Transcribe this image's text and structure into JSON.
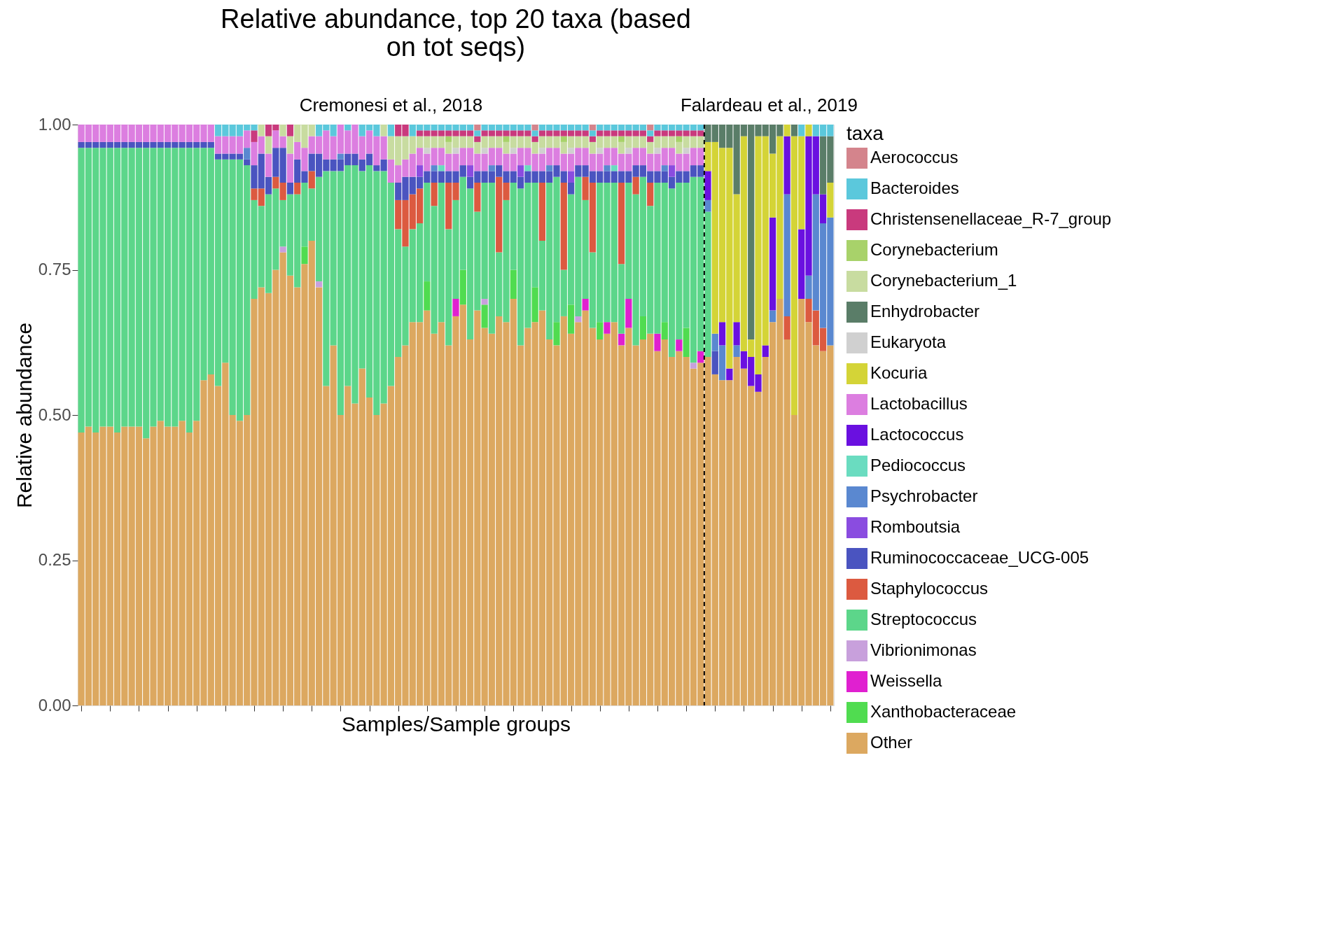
{
  "chart_data": {
    "type": "bar",
    "stacked": true,
    "title": "Relative abundance, top 20 taxa (based on tot seqs)",
    "xlabel": "Samples/Sample groups",
    "ylabel": "Relative abundance",
    "legend_title": "taxa",
    "legend": "right",
    "grid": false,
    "tick_labels": "y",
    "annotations": [
      "Cremonesi et al., 2018",
      "Falardeau et al., 2019"
    ],
    "ylim": [
      0,
      1
    ],
    "yticks": [
      {
        "value": 0,
        "label": "0.00"
      },
      {
        "value": 0.25,
        "label": "0.25"
      },
      {
        "value": 0.5,
        "label": "0.50"
      },
      {
        "value": 0.75,
        "label": "0.75"
      },
      {
        "value": 1,
        "label": "1.00"
      }
    ],
    "categories": [
      null,
      null,
      null,
      null,
      null,
      null,
      null,
      null,
      null,
      null,
      null,
      null,
      null,
      null,
      null,
      null,
      null,
      null,
      null,
      null,
      null,
      null,
      null,
      null,
      null,
      null,
      null,
      null,
      null,
      null,
      null,
      null,
      null,
      null,
      null,
      null,
      null,
      null,
      null,
      null,
      null,
      null,
      null,
      null,
      null,
      null,
      null,
      null,
      null,
      null,
      null,
      null,
      null,
      null,
      null,
      null,
      null,
      null,
      null,
      null,
      null,
      null,
      null,
      null,
      null,
      null,
      null,
      null,
      null,
      null,
      null,
      null,
      null,
      null,
      null,
      null,
      null,
      null,
      null,
      null,
      null,
      null,
      null,
      null,
      null,
      null,
      null,
      null,
      null,
      null,
      null,
      null,
      null,
      null,
      null,
      null,
      null,
      null,
      null,
      null,
      null,
      null,
      null,
      null,
      null
    ],
    "series": [
      {
        "name": "Other",
        "color": "#dca860",
        "values": [
          0.47,
          0.48,
          0.47,
          0.48,
          0.48,
          0.47,
          0.48,
          0.48,
          0.48,
          0.46,
          0.48,
          0.49,
          0.48,
          0.48,
          0.49,
          0.47,
          0.49,
          0.56,
          0.57,
          0.55,
          0.59,
          0.5,
          0.49,
          0.5,
          0.7,
          0.72,
          0.71,
          0.75,
          0.78,
          0.74,
          0.72,
          0.76,
          0.8,
          0.72,
          0.55,
          0.62,
          0.5,
          0.55,
          0.52,
          0.58,
          0.53,
          0.5,
          0.52,
          0.55,
          0.6,
          0.62,
          0.66,
          0.66,
          0.68,
          0.64,
          0.66,
          0.62,
          0.67,
          0.69,
          0.63,
          0.68,
          0.65,
          0.64,
          0.67,
          0.66,
          0.7,
          0.62,
          0.65,
          0.66,
          0.68,
          0.63,
          0.62,
          0.67,
          0.64,
          0.66,
          0.68,
          0.65,
          0.63,
          0.64,
          0.66,
          0.62,
          0.65,
          0.62,
          0.63,
          0.64,
          0.61,
          0.63,
          0.6,
          0.61,
          0.6,
          0.58,
          0.59,
          0.6,
          0.57,
          0.56,
          0.56,
          0.6,
          0.58,
          0.55,
          0.54,
          0.6,
          0.66,
          0.7,
          0.63,
          0.5,
          0.7,
          0.66,
          0.62,
          0.61,
          0.62
        ]
      },
      {
        "name": "Xanthobacteraceae",
        "color": "#50dc50",
        "values": [
          0,
          0,
          0,
          0,
          0,
          0,
          0,
          0,
          0,
          0,
          0,
          0,
          0,
          0,
          0,
          0,
          0,
          0,
          0,
          0,
          0,
          0,
          0,
          0,
          0,
          0,
          0,
          0,
          0,
          0,
          0,
          0.03,
          0,
          0,
          0,
          0,
          0,
          0,
          0,
          0,
          0,
          0,
          0,
          0,
          0,
          0,
          0,
          0,
          0.05,
          0,
          0,
          0,
          0,
          0.06,
          0,
          0,
          0.04,
          0,
          0,
          0,
          0.05,
          0,
          0,
          0.06,
          0,
          0,
          0.04,
          0,
          0.05,
          0,
          0,
          0,
          0.03,
          0,
          0,
          0,
          0,
          0,
          0.04,
          0,
          0,
          0.03,
          0,
          0,
          0.05,
          0,
          0,
          0,
          0,
          0,
          0,
          0,
          0,
          0,
          0,
          0,
          0,
          0,
          0,
          0,
          0,
          0,
          0,
          0,
          0
        ]
      },
      {
        "name": "Weissella",
        "color": "#e020d0",
        "values": [
          0,
          0,
          0,
          0,
          0,
          0,
          0,
          0,
          0,
          0,
          0,
          0,
          0,
          0,
          0,
          0,
          0,
          0,
          0,
          0,
          0,
          0,
          0,
          0,
          0,
          0,
          0,
          0,
          0,
          0,
          0,
          0,
          0,
          0,
          0,
          0,
          0,
          0,
          0,
          0,
          0,
          0,
          0,
          0,
          0,
          0,
          0,
          0,
          0,
          0,
          0,
          0,
          0.03,
          0,
          0,
          0,
          0,
          0,
          0,
          0,
          0,
          0,
          0,
          0,
          0,
          0,
          0,
          0,
          0,
          0,
          0.02,
          0,
          0,
          0.02,
          0,
          0.02,
          0.05,
          0,
          0,
          0,
          0.03,
          0,
          0,
          0.02,
          0,
          0,
          0.02,
          0,
          0,
          0,
          0,
          0,
          0,
          0,
          0,
          0,
          0,
          0,
          0,
          0,
          0,
          0,
          0,
          0,
          0
        ]
      },
      {
        "name": "Vibrionimonas",
        "color": "#c8a0dc",
        "values": [
          0,
          0,
          0,
          0,
          0,
          0,
          0,
          0,
          0,
          0,
          0,
          0,
          0,
          0,
          0,
          0,
          0,
          0,
          0,
          0,
          0,
          0,
          0,
          0,
          0,
          0,
          0,
          0,
          0.01,
          0,
          0,
          0,
          0,
          0.01,
          0,
          0,
          0,
          0,
          0,
          0,
          0,
          0,
          0,
          0,
          0,
          0,
          0,
          0,
          0,
          0,
          0,
          0,
          0,
          0,
          0,
          0,
          0.01,
          0,
          0,
          0,
          0,
          0,
          0,
          0,
          0,
          0,
          0,
          0,
          0,
          0.01,
          0,
          0,
          0,
          0,
          0,
          0,
          0,
          0,
          0,
          0,
          0,
          0,
          0,
          0,
          0,
          0.01,
          0,
          0,
          0,
          0,
          0,
          0,
          0,
          0,
          0,
          0,
          0,
          0,
          0,
          0,
          0,
          0,
          0,
          0,
          0
        ]
      },
      {
        "name": "Streptococcus",
        "color": "#5cd68a",
        "values": [
          0.49,
          0.48,
          0.49,
          0.48,
          0.48,
          0.49,
          0.48,
          0.48,
          0.48,
          0.5,
          0.48,
          0.47,
          0.48,
          0.48,
          0.47,
          0.49,
          0.47,
          0.4,
          0.39,
          0.39,
          0.35,
          0.44,
          0.45,
          0.43,
          0.17,
          0.14,
          0.17,
          0.14,
          0.08,
          0.14,
          0.16,
          0.11,
          0.09,
          0.18,
          0.37,
          0.3,
          0.42,
          0.38,
          0.41,
          0.34,
          0.4,
          0.42,
          0.4,
          0.35,
          0.22,
          0.17,
          0.16,
          0.17,
          0.17,
          0.22,
          0.24,
          0.2,
          0.17,
          0.16,
          0.26,
          0.17,
          0.2,
          0.26,
          0.11,
          0.21,
          0.15,
          0.27,
          0.25,
          0.18,
          0.12,
          0.27,
          0.25,
          0.08,
          0.19,
          0.24,
          0.17,
          0.13,
          0.24,
          0.24,
          0.24,
          0.12,
          0.2,
          0.26,
          0.24,
          0.22,
          0.26,
          0.24,
          0.29,
          0.27,
          0.25,
          0.32,
          0.3,
          0.25,
          0,
          0,
          0,
          0,
          0,
          0,
          0,
          0,
          0,
          0,
          0,
          0,
          0,
          0,
          0,
          0,
          0
        ]
      },
      {
        "name": "Staphylococcus",
        "color": "#dc5a40",
        "values": [
          0,
          0,
          0,
          0,
          0,
          0,
          0,
          0,
          0,
          0,
          0,
          0,
          0,
          0,
          0,
          0,
          0,
          0,
          0,
          0,
          0,
          0,
          0,
          0,
          0.02,
          0.03,
          0,
          0.02,
          0.03,
          0,
          0.02,
          0,
          0.03,
          0,
          0,
          0,
          0,
          0,
          0,
          0,
          0,
          0,
          0,
          0,
          0.05,
          0.08,
          0.06,
          0.06,
          0,
          0.04,
          0,
          0.08,
          0.03,
          0,
          0,
          0.05,
          0,
          0,
          0.13,
          0.03,
          0,
          0,
          0,
          0,
          0.1,
          0,
          0,
          0.15,
          0,
          0,
          0.04,
          0.12,
          0,
          0,
          0,
          0.14,
          0,
          0.03,
          0,
          0.04,
          0,
          0,
          0,
          0,
          0,
          0,
          0,
          0,
          0,
          0,
          0,
          0,
          0,
          0,
          0,
          0,
          0,
          0,
          0.04,
          0,
          0,
          0.04,
          0.06,
          0.04,
          0
        ]
      },
      {
        "name": "Ruminococcaceae_UCG-005",
        "color": "#4a54c0",
        "values": [
          0.01,
          0.01,
          0.01,
          0.01,
          0.01,
          0.01,
          0.01,
          0.01,
          0.01,
          0.01,
          0.01,
          0.01,
          0.01,
          0.01,
          0.01,
          0.01,
          0.01,
          0.01,
          0.01,
          0.01,
          0.01,
          0.01,
          0.01,
          0.01,
          0.04,
          0.06,
          0.03,
          0.05,
          0.06,
          0.02,
          0.04,
          0.02,
          0.03,
          0.04,
          0.02,
          0.02,
          0.02,
          0.02,
          0.02,
          0.02,
          0.02,
          0.01,
          0.02,
          0,
          0.03,
          0.04,
          0.03,
          0.02,
          0.02,
          0.02,
          0.02,
          0.02,
          0.02,
          0.02,
          0.02,
          0.02,
          0.02,
          0.02,
          0.02,
          0.02,
          0.02,
          0.02,
          0.02,
          0.02,
          0.02,
          0.02,
          0.02,
          0.02,
          0.02,
          0.02,
          0.02,
          0.02,
          0.02,
          0.02,
          0.02,
          0.02,
          0.02,
          0.02,
          0.02,
          0.02,
          0.02,
          0.02,
          0.02,
          0.02,
          0.02,
          0.02,
          0.02,
          0,
          0.04,
          0,
          0,
          0,
          0,
          0,
          0,
          0,
          0,
          0,
          0,
          0,
          0,
          0,
          0,
          0,
          0
        ]
      },
      {
        "name": "Romboutsia",
        "color": "#8a4ce0",
        "values": [
          0,
          0,
          0,
          0,
          0,
          0,
          0,
          0,
          0,
          0,
          0,
          0,
          0,
          0,
          0,
          0,
          0,
          0,
          0,
          0,
          0,
          0,
          0,
          0,
          0,
          0,
          0,
          0,
          0,
          0,
          0,
          0,
          0,
          0,
          0,
          0,
          0,
          0,
          0,
          0,
          0,
          0,
          0,
          0,
          0,
          0,
          0,
          0.02,
          0,
          0,
          0,
          0,
          0,
          0,
          0.02,
          0,
          0,
          0,
          0,
          0,
          0,
          0.02,
          0,
          0,
          0,
          0,
          0,
          0,
          0.02,
          0,
          0,
          0,
          0,
          0,
          0,
          0,
          0,
          0,
          0,
          0,
          0,
          0,
          0.02,
          0,
          0,
          0,
          0,
          0,
          0,
          0,
          0,
          0,
          0,
          0,
          0,
          0,
          0,
          0,
          0,
          0,
          0,
          0,
          0,
          0,
          0
        ]
      },
      {
        "name": "Psychrobacter",
        "color": "#5a88d0",
        "values": [
          0,
          0,
          0,
          0,
          0,
          0,
          0,
          0,
          0,
          0,
          0,
          0,
          0,
          0,
          0,
          0,
          0,
          0,
          0,
          0,
          0,
          0,
          0,
          0.02,
          0,
          0,
          0,
          0,
          0,
          0,
          0,
          0,
          0,
          0,
          0,
          0,
          0.01,
          0,
          0,
          0,
          0,
          0,
          0,
          0,
          0,
          0,
          0,
          0,
          0,
          0.01,
          0,
          0,
          0,
          0,
          0,
          0,
          0,
          0.01,
          0,
          0,
          0,
          0,
          0,
          0,
          0,
          0.01,
          0,
          0,
          0,
          0,
          0,
          0,
          0,
          0.01,
          0,
          0,
          0,
          0,
          0,
          0,
          0,
          0.01,
          0,
          0,
          0,
          0,
          0,
          0.02,
          0.03,
          0.06,
          0,
          0.02,
          0,
          0,
          0,
          0,
          0.02,
          0,
          0.21,
          0,
          0,
          0.04,
          0.2,
          0.18,
          0.22
        ]
      },
      {
        "name": "Pediococcus",
        "color": "#6adcc0",
        "values": [
          0,
          0,
          0,
          0,
          0,
          0,
          0,
          0,
          0,
          0,
          0,
          0,
          0,
          0,
          0,
          0,
          0,
          0,
          0,
          0,
          0,
          0,
          0,
          0,
          0,
          0,
          0,
          0,
          0,
          0,
          0,
          0,
          0,
          0,
          0,
          0,
          0,
          0,
          0,
          0,
          0,
          0,
          0,
          0,
          0,
          0,
          0,
          0,
          0,
          0,
          0.01,
          0,
          0,
          0,
          0,
          0,
          0,
          0,
          0,
          0,
          0,
          0,
          0.01,
          0,
          0,
          0,
          0,
          0,
          0,
          0,
          0,
          0,
          0,
          0,
          0.01,
          0,
          0,
          0,
          0,
          0,
          0,
          0,
          0,
          0,
          0,
          0,
          0,
          0,
          0,
          0,
          0,
          0,
          0,
          0,
          0,
          0,
          0,
          0,
          0,
          0,
          0,
          0,
          0,
          0,
          0
        ]
      },
      {
        "name": "Lactococcus",
        "color": "#6a10e0",
        "values": [
          0,
          0,
          0,
          0,
          0,
          0,
          0,
          0,
          0,
          0,
          0,
          0,
          0,
          0,
          0,
          0,
          0,
          0,
          0,
          0,
          0,
          0,
          0,
          0,
          0,
          0,
          0,
          0,
          0,
          0,
          0,
          0,
          0,
          0,
          0,
          0,
          0,
          0,
          0,
          0,
          0,
          0,
          0,
          0,
          0,
          0,
          0,
          0,
          0,
          0,
          0,
          0,
          0,
          0,
          0,
          0,
          0,
          0,
          0,
          0,
          0,
          0,
          0,
          0,
          0,
          0,
          0,
          0,
          0,
          0,
          0,
          0,
          0,
          0,
          0,
          0,
          0,
          0,
          0,
          0,
          0,
          0,
          0,
          0,
          0,
          0,
          0,
          0.05,
          0,
          0.04,
          0.02,
          0.04,
          0.03,
          0.05,
          0.03,
          0.02,
          0.16,
          0,
          0.1,
          0,
          0.12,
          0.24,
          0.1,
          0.05,
          0
        ]
      },
      {
        "name": "Lactobacillus",
        "color": "#dc7ee0",
        "values": [
          0.03,
          0.03,
          0.03,
          0.03,
          0.03,
          0.03,
          0.03,
          0.03,
          0.03,
          0.03,
          0.03,
          0.03,
          0.03,
          0.03,
          0.03,
          0.03,
          0.03,
          0.03,
          0.03,
          0.03,
          0.03,
          0.03,
          0.03,
          0.03,
          0.04,
          0.03,
          0.04,
          0.03,
          0.02,
          0.05,
          0.03,
          0.04,
          0.03,
          0.03,
          0.05,
          0.04,
          0.05,
          0.04,
          0.05,
          0.04,
          0.04,
          0.05,
          0.04,
          0.04,
          0.03,
          0.03,
          0.04,
          0.03,
          0.03,
          0.03,
          0.03,
          0.03,
          0.03,
          0.03,
          0.03,
          0.03,
          0.03,
          0.03,
          0.03,
          0.03,
          0.03,
          0.03,
          0.03,
          0.03,
          0.03,
          0.03,
          0.03,
          0.03,
          0.03,
          0.03,
          0.03,
          0.03,
          0.03,
          0.03,
          0.03,
          0.03,
          0.03,
          0.03,
          0.03,
          0.03,
          0.03,
          0.03,
          0.03,
          0.03,
          0.03,
          0.03,
          0.03,
          0,
          0,
          0,
          0,
          0,
          0,
          0,
          0,
          0,
          0,
          0,
          0,
          0,
          0,
          0,
          0,
          0,
          0
        ]
      },
      {
        "name": "Kocuria",
        "color": "#d4d437",
        "values": [
          0,
          0,
          0,
          0,
          0,
          0,
          0,
          0,
          0,
          0,
          0,
          0,
          0,
          0,
          0,
          0,
          0,
          0,
          0,
          0,
          0,
          0,
          0,
          0,
          0,
          0,
          0,
          0,
          0,
          0,
          0,
          0,
          0,
          0,
          0,
          0,
          0,
          0,
          0,
          0,
          0,
          0,
          0,
          0,
          0,
          0,
          0,
          0,
          0,
          0,
          0,
          0,
          0,
          0,
          0,
          0,
          0,
          0,
          0,
          0,
          0,
          0,
          0,
          0,
          0,
          0,
          0,
          0,
          0,
          0,
          0,
          0,
          0,
          0,
          0,
          0,
          0,
          0,
          0,
          0,
          0,
          0,
          0,
          0,
          0,
          0,
          0,
          0.05,
          0.33,
          0.3,
          0.38,
          0.22,
          0.37,
          0.03,
          0.41,
          0.36,
          0.11,
          0.28,
          0.02,
          0.48,
          0.16,
          0.02,
          0,
          0,
          0.06
        ]
      },
      {
        "name": "Eukaryota",
        "color": "#d0d0d0",
        "values": [
          0,
          0,
          0,
          0,
          0,
          0,
          0,
          0,
          0,
          0,
          0,
          0,
          0,
          0,
          0,
          0,
          0,
          0,
          0,
          0,
          0,
          0,
          0,
          0,
          0,
          0,
          0,
          0,
          0,
          0,
          0,
          0,
          0,
          0,
          0,
          0,
          0,
          0,
          0,
          0,
          0,
          0,
          0,
          0,
          0,
          0,
          0,
          0,
          0.01,
          0,
          0,
          0,
          0.01,
          0,
          0,
          0,
          0.01,
          0,
          0,
          0,
          0.01,
          0,
          0,
          0,
          0.01,
          0,
          0,
          0,
          0.01,
          0,
          0,
          0,
          0.01,
          0,
          0,
          0,
          0.01,
          0,
          0,
          0,
          0.01,
          0,
          0,
          0,
          0.01,
          0,
          0,
          0,
          0,
          0,
          0,
          0,
          0,
          0,
          0,
          0,
          0,
          0,
          0,
          0,
          0,
          0,
          0,
          0,
          0
        ]
      },
      {
        "name": "Enhydrobacter",
        "color": "#5a7d68",
        "values": [
          0,
          0,
          0,
          0,
          0,
          0,
          0,
          0,
          0,
          0,
          0,
          0,
          0,
          0,
          0,
          0,
          0,
          0,
          0,
          0,
          0,
          0,
          0,
          0,
          0,
          0,
          0,
          0,
          0,
          0,
          0,
          0,
          0,
          0,
          0,
          0,
          0,
          0,
          0,
          0,
          0,
          0,
          0,
          0,
          0,
          0,
          0,
          0,
          0,
          0,
          0,
          0,
          0,
          0,
          0,
          0,
          0,
          0,
          0,
          0,
          0,
          0,
          0,
          0,
          0,
          0,
          0,
          0,
          0,
          0,
          0,
          0,
          0,
          0,
          0,
          0,
          0,
          0,
          0,
          0,
          0,
          0,
          0,
          0,
          0,
          0,
          0,
          0.03,
          0.03,
          0.04,
          0.04,
          0.12,
          0.02,
          0.37,
          0.02,
          0.02,
          0.05,
          0.02,
          0,
          0.02,
          0,
          0,
          0,
          0.1,
          0.08
        ]
      },
      {
        "name": "Corynebacterium_1",
        "color": "#c8dca0",
        "values": [
          0,
          0,
          0,
          0,
          0,
          0,
          0,
          0,
          0,
          0,
          0,
          0,
          0,
          0,
          0,
          0,
          0,
          0,
          0,
          0,
          0,
          0,
          0,
          0,
          0,
          0.02,
          0.03,
          0,
          0.02,
          0.03,
          0.03,
          0.04,
          0.02,
          0,
          0,
          0,
          0,
          0,
          0,
          0,
          0,
          0,
          0.02,
          0.04,
          0.05,
          0.04,
          0.03,
          0.02,
          0.02,
          0.02,
          0.02,
          0.02,
          0.02,
          0.02,
          0.02,
          0.02,
          0.02,
          0.02,
          0.02,
          0.02,
          0.02,
          0.02,
          0.02,
          0.02,
          0.02,
          0.02,
          0.02,
          0.02,
          0.02,
          0.02,
          0.02,
          0.02,
          0.02,
          0.02,
          0.02,
          0.02,
          0.02,
          0.02,
          0.02,
          0.02,
          0.02,
          0.02,
          0.02,
          0.02,
          0.02,
          0.02,
          0.02,
          0,
          0,
          0,
          0,
          0,
          0,
          0,
          0,
          0,
          0,
          0,
          0,
          0,
          0,
          0,
          0,
          0,
          0
        ]
      },
      {
        "name": "Corynebacterium",
        "color": "#a8d26a",
        "values": [
          0,
          0,
          0,
          0,
          0,
          0,
          0,
          0,
          0,
          0,
          0,
          0,
          0,
          0,
          0,
          0,
          0,
          0,
          0,
          0,
          0,
          0,
          0,
          0,
          0,
          0,
          0,
          0,
          0,
          0,
          0,
          0,
          0,
          0,
          0,
          0,
          0,
          0,
          0,
          0,
          0,
          0,
          0,
          0,
          0,
          0,
          0,
          0,
          0,
          0,
          0,
          0.01,
          0,
          0,
          0,
          0,
          0,
          0,
          0,
          0.01,
          0,
          0,
          0,
          0,
          0,
          0,
          0,
          0.01,
          0,
          0,
          0,
          0,
          0,
          0,
          0,
          0.01,
          0,
          0,
          0,
          0,
          0,
          0,
          0,
          0.01,
          0,
          0,
          0,
          0,
          0,
          0,
          0,
          0,
          0,
          0,
          0,
          0,
          0,
          0,
          0,
          0,
          0,
          0,
          0,
          0,
          0
        ]
      },
      {
        "name": "Christensenellaceae_R-7_group",
        "color": "#c93a7d",
        "values": [
          0,
          0,
          0,
          0,
          0,
          0,
          0,
          0,
          0,
          0,
          0,
          0,
          0,
          0,
          0,
          0,
          0,
          0,
          0,
          0,
          0,
          0,
          0,
          0,
          0.02,
          0,
          0.02,
          0.01,
          0,
          0.02,
          0,
          0,
          0,
          0,
          0,
          0,
          0,
          0,
          0,
          0,
          0,
          0,
          0,
          0,
          0.02,
          0.02,
          0,
          0.01,
          0.01,
          0.01,
          0.01,
          0.01,
          0.01,
          0.01,
          0.01,
          0.01,
          0.01,
          0.01,
          0.01,
          0.01,
          0.01,
          0.01,
          0.01,
          0.01,
          0.01,
          0.01,
          0.01,
          0.01,
          0.01,
          0.01,
          0.01,
          0.01,
          0.01,
          0.01,
          0.01,
          0.01,
          0.01,
          0.01,
          0.01,
          0.01,
          0.01,
          0.01,
          0.01,
          0.01,
          0.01,
          0.01,
          0.01,
          0,
          0,
          0,
          0,
          0,
          0,
          0,
          0,
          0,
          0,
          0,
          0,
          0,
          0,
          0,
          0,
          0,
          0
        ]
      },
      {
        "name": "Bacteroides",
        "color": "#5bc8dc",
        "values": [
          0,
          0,
          0,
          0,
          0,
          0,
          0,
          0,
          0,
          0,
          0,
          0,
          0,
          0,
          0,
          0,
          0,
          0,
          0,
          0.02,
          0.02,
          0.02,
          0.02,
          0.01,
          0.01,
          0,
          0,
          0,
          0,
          0,
          0,
          0,
          0,
          0.02,
          0.01,
          0.02,
          0,
          0.01,
          0,
          0.02,
          0.01,
          0.02,
          0,
          0.02,
          0,
          0,
          0.02,
          0.01,
          0.01,
          0.01,
          0.01,
          0.01,
          0.01,
          0.01,
          0.01,
          0.01,
          0.01,
          0.01,
          0.01,
          0.01,
          0.01,
          0.01,
          0.01,
          0.01,
          0.01,
          0.01,
          0.01,
          0.01,
          0.01,
          0.01,
          0.01,
          0.01,
          0.01,
          0.01,
          0.01,
          0.01,
          0.01,
          0.01,
          0.01,
          0.01,
          0.01,
          0.01,
          0.01,
          0.01,
          0.01,
          0.01,
          0.01,
          0,
          0,
          0,
          0,
          0,
          0,
          0,
          0,
          0,
          0,
          0,
          0,
          0,
          0.02,
          0,
          0.02,
          0.02,
          0.02
        ]
      },
      {
        "name": "Aerococcus",
        "color": "#d4848c",
        "values": [
          0,
          0,
          0,
          0,
          0,
          0,
          0,
          0,
          0,
          0,
          0,
          0,
          0,
          0,
          0,
          0,
          0,
          0,
          0,
          0,
          0,
          0,
          0,
          0,
          0,
          0,
          0,
          0,
          0,
          0,
          0,
          0,
          0,
          0,
          0,
          0,
          0,
          0,
          0,
          0,
          0,
          0,
          0,
          0,
          0,
          0,
          0,
          0,
          0,
          0,
          0,
          0,
          0,
          0,
          0,
          0.01,
          0,
          0,
          0,
          0,
          0,
          0,
          0,
          0.01,
          0,
          0,
          0,
          0,
          0,
          0,
          0,
          0.01,
          0,
          0,
          0,
          0,
          0,
          0,
          0,
          0.01,
          0,
          0,
          0,
          0,
          0,
          0,
          0,
          0,
          0,
          0,
          0,
          0,
          0,
          0,
          0,
          0,
          0,
          0,
          0,
          0,
          0,
          0,
          0,
          0,
          0
        ]
      }
    ]
  }
}
